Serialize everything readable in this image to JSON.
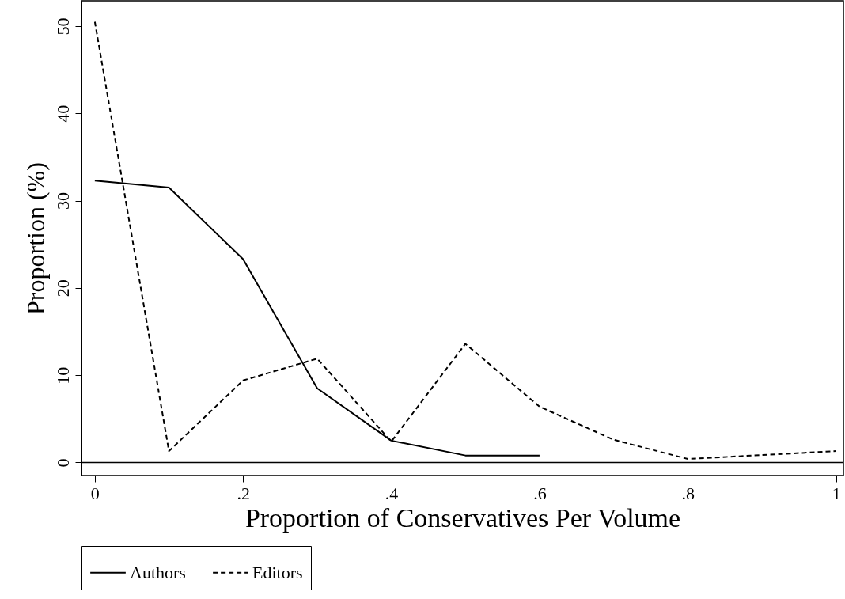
{
  "chart_data": {
    "type": "line",
    "xlabel": "Proportion of Conservatives Per Volume",
    "ylabel": "Proportion (%)",
    "xlim": [
      -0.018,
      1.01
    ],
    "ylim": [
      -1.5,
      52.9
    ],
    "xticks": [
      0,
      {
        "value": 0.2,
        "label": ".2"
      },
      {
        "value": 0.4,
        "label": ".4"
      },
      {
        "value": 0.6,
        "label": ".6"
      },
      {
        "value": 0.8,
        "label": ".8"
      },
      1
    ],
    "yticks": [
      0,
      10,
      20,
      30,
      40,
      50
    ],
    "grid": false,
    "legend": "bottom",
    "marker": "none",
    "ref_lines": [
      {
        "axis": "y",
        "value": 0,
        "color": "#000000"
      }
    ],
    "series": [
      {
        "name": "Authors",
        "color": "#000000",
        "line_style": "solid",
        "x": [
          0,
          0.1,
          0.2,
          0.3,
          0.4,
          0.5,
          0.6
        ],
        "values": [
          32.3,
          31.5,
          23.3,
          8.5,
          2.5,
          0.8,
          0.8
        ]
      },
      {
        "name": "Editors",
        "color": "#000000",
        "line_style": "dashed",
        "x": [
          0,
          0.1,
          0.2,
          0.3,
          0.4,
          0.5,
          0.6,
          0.7,
          0.8,
          1
        ],
        "values": [
          50.5,
          1.3,
          9.4,
          11.9,
          2.4,
          13.6,
          6.4,
          2.6,
          0.4,
          1.3
        ]
      }
    ]
  }
}
